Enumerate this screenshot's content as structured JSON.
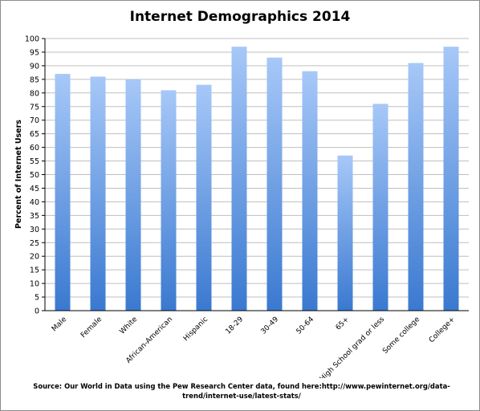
{
  "chart_data": {
    "type": "bar",
    "title": "Internet Demographics 2014",
    "ylabel": "Percent of Internet Users",
    "xlabel": "",
    "categories": [
      "Male",
      "Female",
      "White",
      "African-American",
      "Hispanic",
      "18-29",
      "30-49",
      "50-64",
      "65+",
      "High School grad or less",
      "Some college",
      "College+"
    ],
    "values": [
      87,
      86,
      85,
      81,
      83,
      97,
      93,
      88,
      57,
      76,
      91,
      97
    ],
    "ylim": [
      0,
      100
    ],
    "ytick_step": 5,
    "grid": true,
    "legend": "none",
    "colors": {
      "bar_top": "#a7c8f8",
      "bar_bottom": "#3a79d0",
      "grid": "#bfbfbf"
    }
  },
  "source": "Source: Our World in Data using the Pew Research Center data, found here:http://www.pewinternet.org/data-trend/internet-use/latest-stats/"
}
